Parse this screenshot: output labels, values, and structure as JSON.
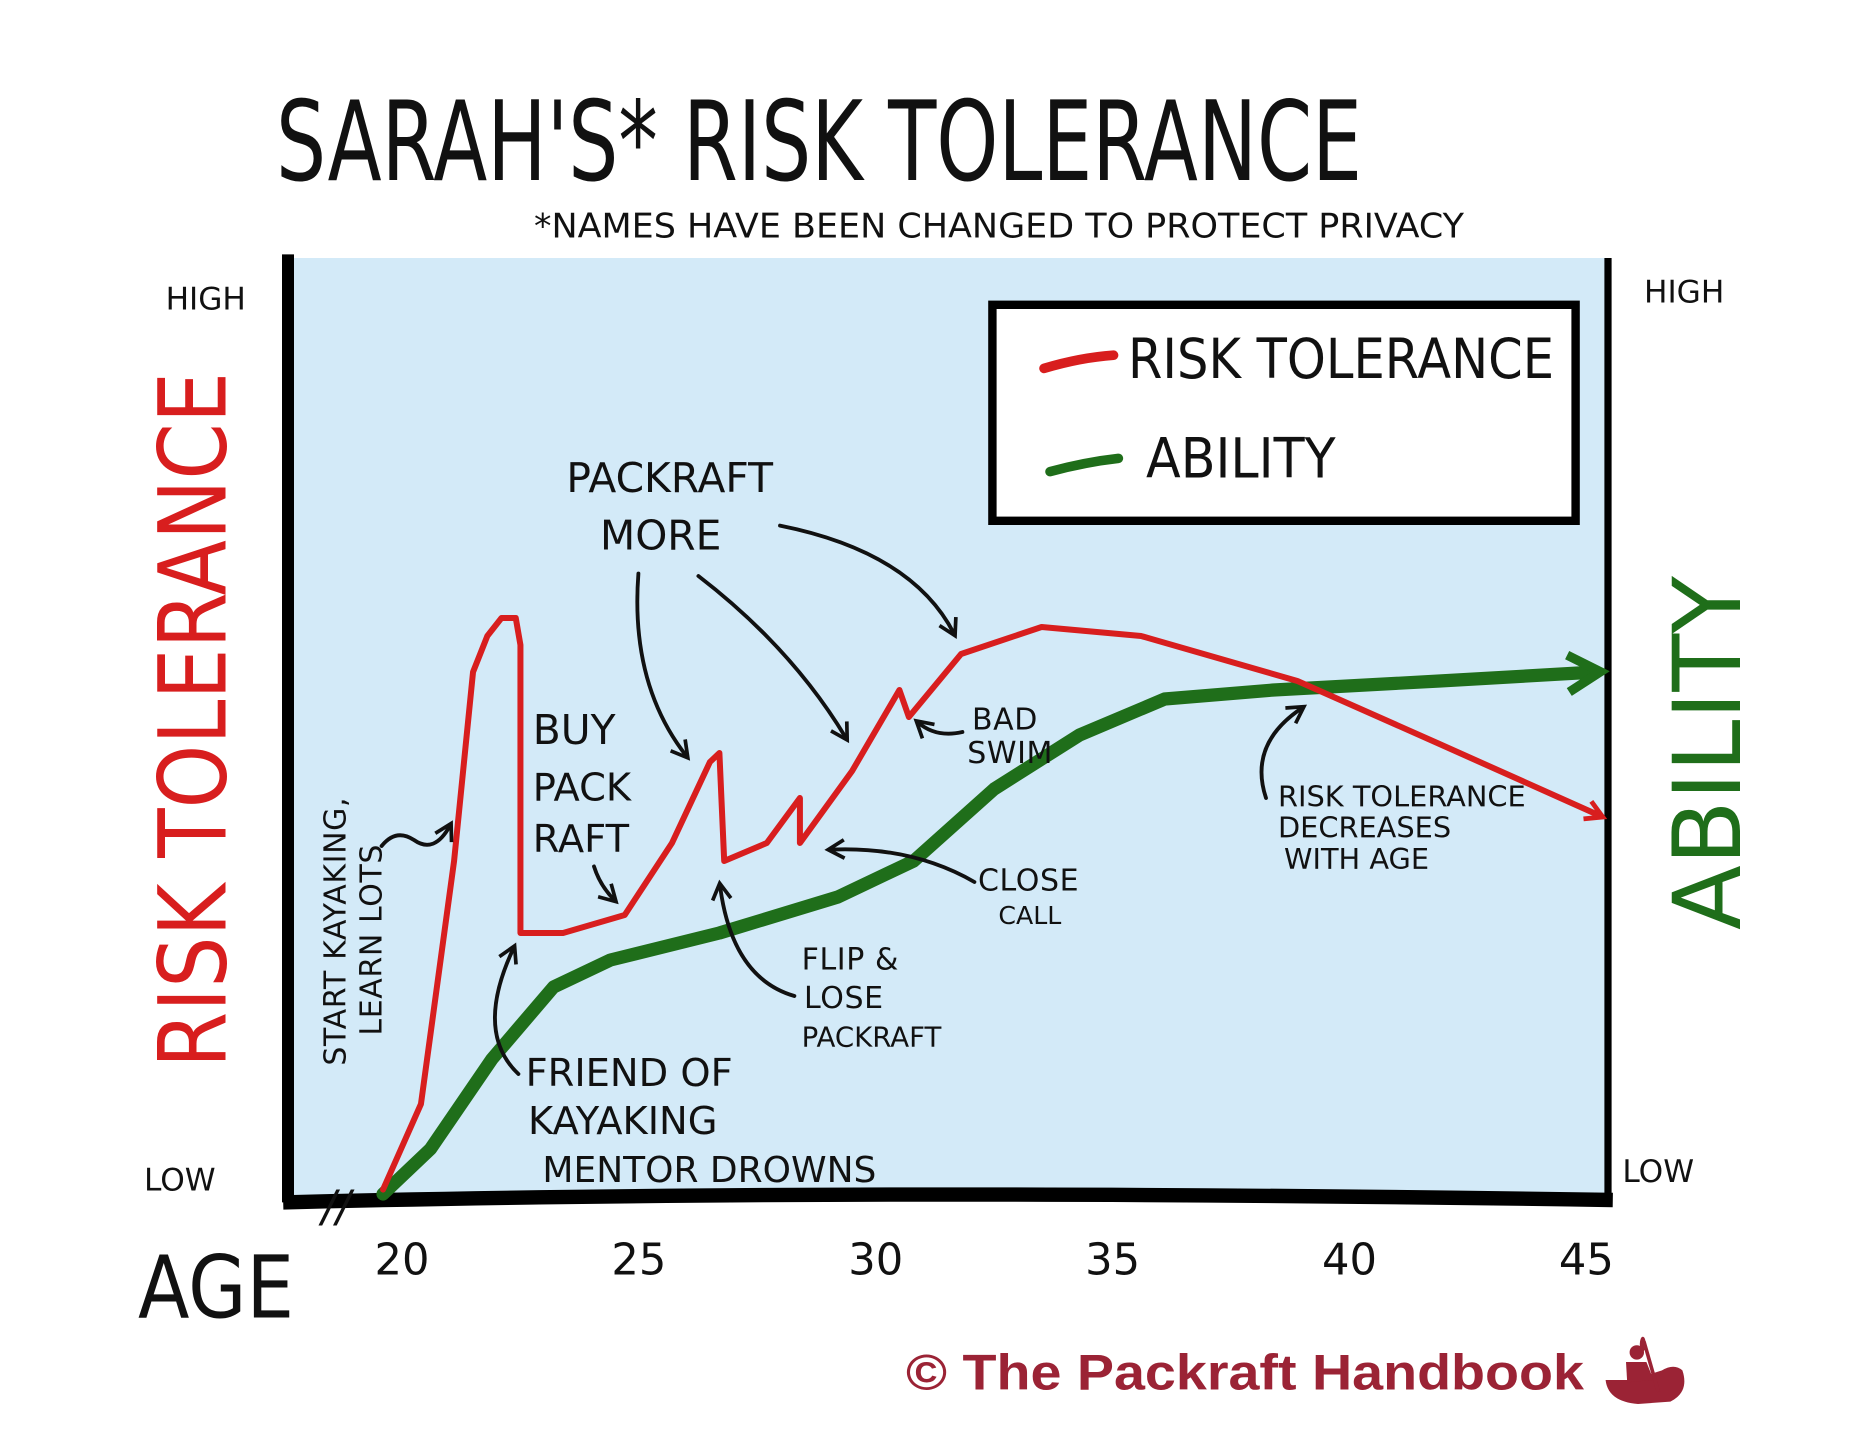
{
  "chart_data": {
    "type": "line",
    "title": "SARAH'S* RISK TOLERANCE",
    "subtitle": "*NAMES HAVE BEEN CHANGED TO PROTECT PRIVACY",
    "xlabel": "AGE",
    "ylabel_left": "RISK TOLERANCE",
    "ylabel_right": "ABILITY",
    "y_left_ticks": {
      "high": "HIGH",
      "low": "LOW"
    },
    "y_right_ticks": {
      "high": "HIGH",
      "low": "LOW"
    },
    "xlim": [
      19.5,
      45.5
    ],
    "ylim": [
      0,
      100
    ],
    "x_ticks": [
      "20",
      "25",
      "30",
      "35",
      "40",
      "45"
    ],
    "x_tick_values": [
      20,
      25,
      30,
      35,
      40,
      45
    ],
    "axis_break": "//",
    "legend_position": "top-right",
    "series": [
      {
        "name": "RISK TOLERANCE",
        "color": "#d81e1e",
        "points": [
          [
            19.6,
            0.5
          ],
          [
            20.4,
            10
          ],
          [
            21.1,
            37
          ],
          [
            21.5,
            58
          ],
          [
            21.8,
            62
          ],
          [
            22.1,
            64
          ],
          [
            22.4,
            64
          ],
          [
            22.5,
            61
          ],
          [
            22.5,
            29
          ],
          [
            23.4,
            29
          ],
          [
            24.7,
            31
          ],
          [
            25.7,
            39
          ],
          [
            26.5,
            48
          ],
          [
            26.7,
            49
          ],
          [
            26.8,
            37
          ],
          [
            27.7,
            39
          ],
          [
            28.4,
            44
          ],
          [
            28.4,
            39
          ],
          [
            29.5,
            47
          ],
          [
            30.5,
            56
          ],
          [
            30.7,
            53
          ],
          [
            31.8,
            60
          ],
          [
            33.5,
            63
          ],
          [
            35.6,
            62
          ],
          [
            38.9,
            57
          ],
          [
            41.9,
            50
          ],
          [
            45.3,
            42
          ]
        ]
      },
      {
        "name": "ABILITY",
        "color": "#1f6e1a",
        "points": [
          [
            19.6,
            0
          ],
          [
            20.6,
            5
          ],
          [
            21.9,
            15
          ],
          [
            23.2,
            23
          ],
          [
            24.4,
            26
          ],
          [
            26.7,
            29
          ],
          [
            29.2,
            33
          ],
          [
            30.8,
            37
          ],
          [
            32.5,
            45
          ],
          [
            34.3,
            51
          ],
          [
            36.1,
            55
          ],
          [
            38.4,
            56
          ],
          [
            41.9,
            57
          ],
          [
            45.2,
            58
          ]
        ]
      }
    ],
    "annotations": {
      "start_kayaking": [
        "START KAYAKING,",
        "LEARN LOTS"
      ],
      "buy_packraft": [
        "BUY",
        "PACK",
        "RAFT"
      ],
      "packraft_more": [
        "PACKRAFT",
        "MORE"
      ],
      "bad_swim": [
        "BAD",
        "SWIM"
      ],
      "close_call": [
        "CLOSE",
        "CALL"
      ],
      "flip_lose": [
        "FLIP &",
        "LOSE",
        "PACKRAFT"
      ],
      "friend_drowns": [
        "FRIEND OF",
        "KAYAKING",
        "MENTOR DROWNS"
      ],
      "decreases": [
        "RISK TOLERANCE",
        "DECREASES",
        "WITH AGE"
      ]
    }
  },
  "footer": {
    "copyright": "© The Packraft Handbook",
    "color": "#9b2335",
    "logo_icon": "packraft-paddler-icon"
  }
}
